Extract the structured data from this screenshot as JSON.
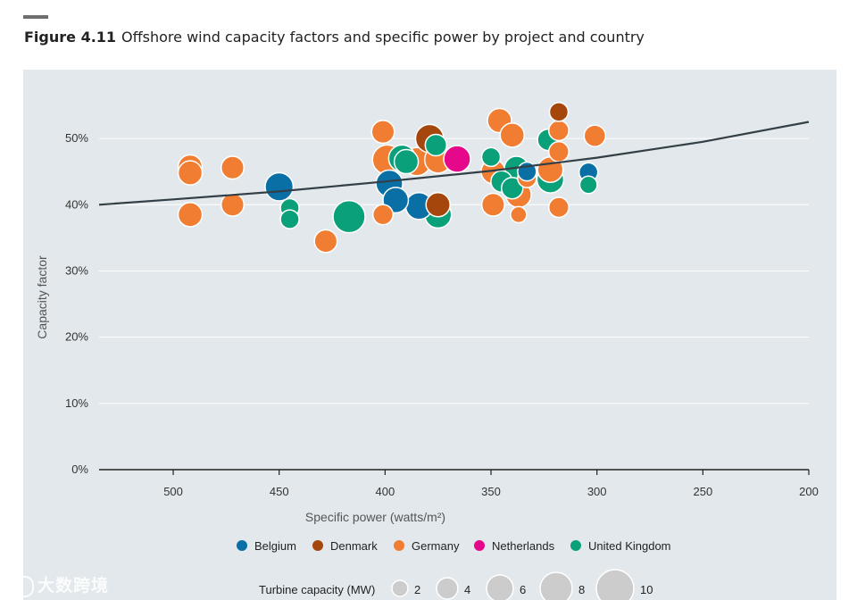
{
  "figure": {
    "number": "Figure 4.11",
    "title": "Offshore wind capacity factors and specific power by project and country"
  },
  "chart_data": {
    "type": "scatter",
    "xlabel": "Specific power (watts/m²)",
    "ylabel": "Capacity factor",
    "xlim": [
      535,
      200
    ],
    "ylim": [
      0,
      55
    ],
    "x_ticks": [
      "500",
      "450",
      "400",
      "350",
      "300",
      "250",
      "200"
    ],
    "x_tick_values": [
      500,
      450,
      400,
      350,
      300,
      250,
      200
    ],
    "y_ticks": [
      "0%",
      "10%",
      "20%",
      "30%",
      "40%",
      "50%"
    ],
    "y_tick_values": [
      0,
      10,
      20,
      30,
      40,
      50
    ],
    "colors": {
      "Belgium": "#0a6fa5",
      "Denmark": "#a5470c",
      "Germany": "#f07d32",
      "Netherlands": "#e6088a",
      "United Kingdom": "#0aa07a",
      "trend": "#333f46",
      "legend_size": "#cccccc"
    },
    "legend": {
      "countries": [
        "Belgium",
        "Denmark",
        "Germany",
        "Netherlands",
        "United Kingdom"
      ],
      "size_title": "Turbine capacity (MW)",
      "size_labels": [
        "2",
        "4",
        "6",
        "8",
        "10"
      ],
      "size_values": [
        2,
        4,
        6,
        8,
        10
      ]
    },
    "trend": {
      "x": [
        535,
        500,
        450,
        400,
        350,
        300,
        250,
        200
      ],
      "y": [
        40.0,
        40.8,
        42.0,
        43.5,
        45.1,
        47.1,
        49.5,
        52.5
      ]
    },
    "series": [
      {
        "name": "United Kingdom",
        "points": [
          {
            "x": 392,
            "y": 47.0,
            "mw": 6.0
          },
          {
            "x": 390,
            "y": 46.5,
            "mw": 5.0
          },
          {
            "x": 376,
            "y": 49.0,
            "mw": 4.0
          },
          {
            "x": 375,
            "y": 38.5,
            "mw": 6.0
          },
          {
            "x": 350,
            "y": 47.2,
            "mw": 3.0
          },
          {
            "x": 345,
            "y": 43.5,
            "mw": 4.0
          },
          {
            "x": 340,
            "y": 42.5,
            "mw": 4.0
          },
          {
            "x": 338,
            "y": 45.5,
            "mw": 5.0
          },
          {
            "x": 323,
            "y": 49.8,
            "mw": 4.0
          },
          {
            "x": 322,
            "y": 43.8,
            "mw": 6.0
          },
          {
            "x": 304,
            "y": 43.0,
            "mw": 2.5
          },
          {
            "x": 445,
            "y": 39.5,
            "mw": 3.0
          },
          {
            "x": 445,
            "y": 37.8,
            "mw": 3.0
          },
          {
            "x": 417,
            "y": 38.2,
            "mw": 8.0
          }
        ]
      },
      {
        "name": "Germany",
        "points": [
          {
            "x": 492,
            "y": 45.7,
            "mw": 5.0
          },
          {
            "x": 492,
            "y": 44.8,
            "mw": 5.0
          },
          {
            "x": 492,
            "y": 38.5,
            "mw": 5.0
          },
          {
            "x": 472,
            "y": 45.6,
            "mw": 4.5
          },
          {
            "x": 472,
            "y": 40.0,
            "mw": 4.5
          },
          {
            "x": 428,
            "y": 34.5,
            "mw": 4.5
          },
          {
            "x": 401,
            "y": 51.0,
            "mw": 4.5
          },
          {
            "x": 399,
            "y": 46.8,
            "mw": 7.0
          },
          {
            "x": 401,
            "y": 38.5,
            "mw": 3.5
          },
          {
            "x": 385,
            "y": 46.5,
            "mw": 6.5
          },
          {
            "x": 375,
            "y": 46.8,
            "mw": 6.0
          },
          {
            "x": 346,
            "y": 52.7,
            "mw": 5.0
          },
          {
            "x": 340,
            "y": 50.5,
            "mw": 5.0
          },
          {
            "x": 349,
            "y": 45.0,
            "mw": 5.0
          },
          {
            "x": 349,
            "y": 40.0,
            "mw": 4.5
          },
          {
            "x": 337,
            "y": 38.5,
            "mw": 2.0
          },
          {
            "x": 337,
            "y": 41.5,
            "mw": 5.5
          },
          {
            "x": 333,
            "y": 44.0,
            "mw": 3.0
          },
          {
            "x": 322,
            "y": 45.3,
            "mw": 5.5
          },
          {
            "x": 318,
            "y": 51.2,
            "mw": 3.5
          },
          {
            "x": 318,
            "y": 48.0,
            "mw": 3.5
          },
          {
            "x": 318,
            "y": 39.6,
            "mw": 3.5
          },
          {
            "x": 301,
            "y": 50.4,
            "mw": 4.0
          }
        ]
      },
      {
        "name": "Belgium",
        "points": [
          {
            "x": 450,
            "y": 42.7,
            "mw": 6.5
          },
          {
            "x": 398,
            "y": 43.2,
            "mw": 6.0
          },
          {
            "x": 395,
            "y": 40.7,
            "mw": 5.5
          },
          {
            "x": 384,
            "y": 39.8,
            "mw": 6.0
          },
          {
            "x": 333,
            "y": 45.0,
            "mw": 3.0
          },
          {
            "x": 304,
            "y": 44.9,
            "mw": 3.0
          }
        ]
      },
      {
        "name": "Denmark",
        "points": [
          {
            "x": 379,
            "y": 50.0,
            "mw": 6.5
          },
          {
            "x": 375,
            "y": 40.0,
            "mw": 5.0
          },
          {
            "x": 318,
            "y": 54.0,
            "mw": 3.0
          }
        ]
      },
      {
        "name": "Netherlands",
        "points": [
          {
            "x": 366,
            "y": 46.9,
            "mw": 6.0
          }
        ]
      }
    ]
  },
  "watermark": "大数跨境"
}
